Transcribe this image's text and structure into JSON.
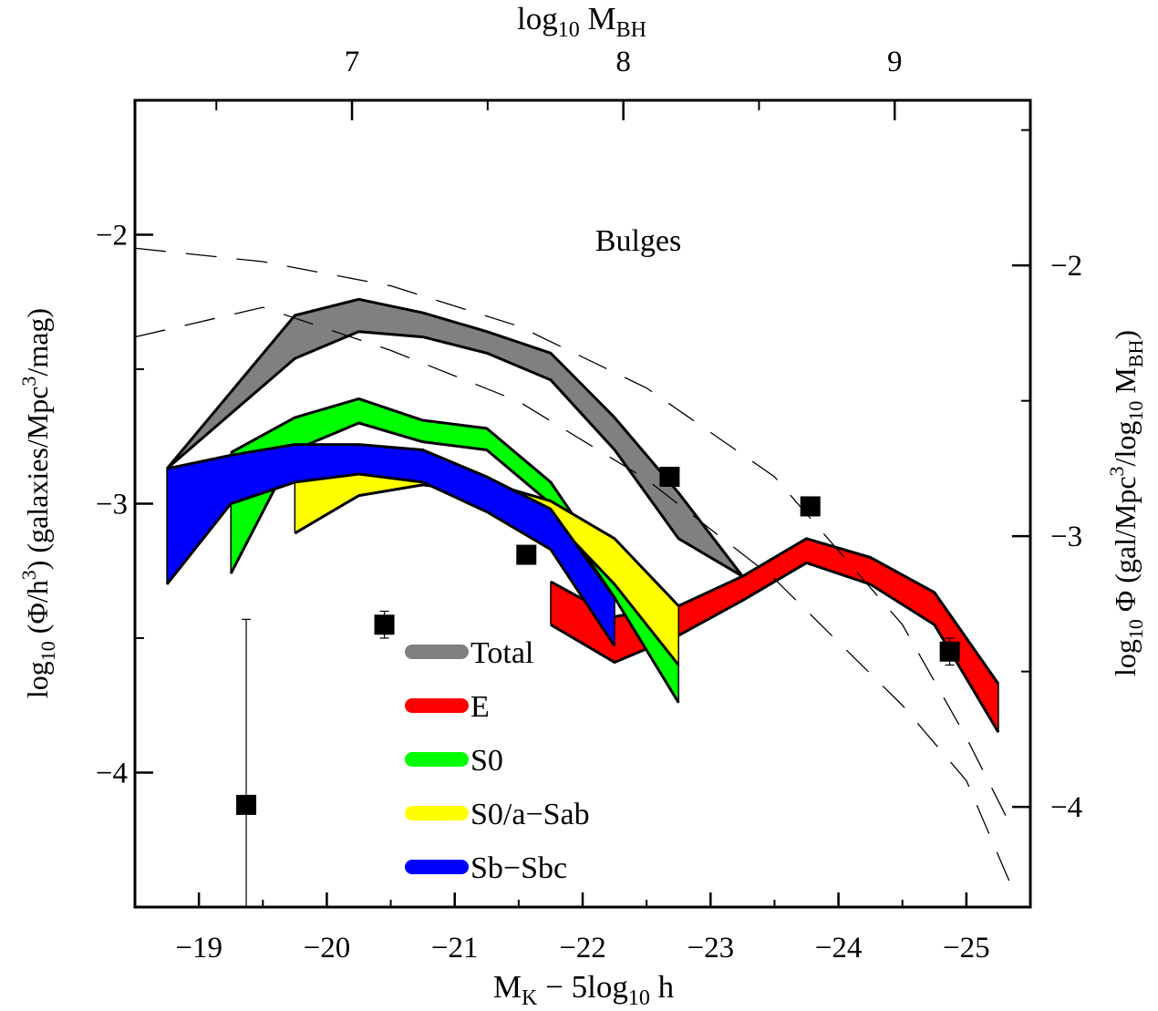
{
  "chart_data": {
    "type": "area",
    "annotation": "Bulges",
    "xlabel": {
      "main": "M",
      "sub1": "K",
      "mid": " − 5log",
      "sub2": "10",
      "end": " h"
    },
    "ylabel_left": {
      "a": "log",
      "a_sub": "10",
      "b": " (Φ/h",
      "b_sup": "3",
      "c": ") (galaxies/Mpc",
      "c_sup": "3",
      "d": "/mag)"
    },
    "ylabel_right": {
      "a": "log",
      "a_sub": "10",
      "b": " Φ (gal/Mpc",
      "b_sup": "3",
      "c": "/log",
      "c_sub": "10",
      "d": " M",
      "d_sub": "BH",
      "e": ")"
    },
    "xlabel_top": {
      "a": "log",
      "a_sub": "10",
      "b": " M",
      "b_sub": "BH"
    },
    "xlim": [
      -18.5,
      -25.5
    ],
    "ylim": [
      -4.5,
      -1.5
    ],
    "ylim_right": [
      -4.37,
      -1.39
    ],
    "top_xlim": [
      6.2,
      9.5
    ],
    "x_ticks": [
      {
        "value": -19,
        "label": "−19"
      },
      {
        "value": -20,
        "label": "−20"
      },
      {
        "value": -21,
        "label": "−21"
      },
      {
        "value": -22,
        "label": "−22"
      },
      {
        "value": -23,
        "label": "−23"
      },
      {
        "value": -24,
        "label": "−24"
      },
      {
        "value": -25,
        "label": "−25"
      }
    ],
    "y_ticks": [
      {
        "value": -2,
        "label": "−2"
      },
      {
        "value": -3,
        "label": "−3"
      },
      {
        "value": -4,
        "label": "−4"
      }
    ],
    "y_right_ticks": [
      {
        "value": -2,
        "label": "−2"
      },
      {
        "value": -3,
        "label": "−3"
      },
      {
        "value": -4,
        "label": "−4"
      }
    ],
    "x_top_ticks": [
      {
        "value": 7,
        "label": "7"
      },
      {
        "value": 8,
        "label": "8"
      },
      {
        "value": 9,
        "label": "9"
      }
    ],
    "bands": [
      {
        "name": "E",
        "color": "#ff0000",
        "x": [
          -21.75,
          -22.25,
          -22.75,
          -23.25,
          -23.75,
          -24.25,
          -24.75,
          -25.25
        ],
        "upper": [
          -3.29,
          -3.42,
          -3.38,
          -3.27,
          -3.13,
          -3.2,
          -3.33,
          -3.67
        ],
        "lower": [
          -3.45,
          -3.59,
          -3.49,
          -3.36,
          -3.22,
          -3.3,
          -3.45,
          -3.85
        ]
      },
      {
        "name": "Total",
        "color": "#808080",
        "x": [
          -18.75,
          -19.75,
          -20.25,
          -20.75,
          -21.25,
          -21.75,
          -22.25,
          -22.75,
          -23.25
        ],
        "upper": [
          -2.87,
          -2.3,
          -2.24,
          -2.29,
          -2.36,
          -2.44,
          -2.68,
          -2.96,
          -3.27
        ],
        "lower": [
          -2.87,
          -2.46,
          -2.36,
          -2.38,
          -2.44,
          -2.54,
          -2.8,
          -3.13,
          -3.27
        ]
      },
      {
        "name": "S0",
        "color": "#00ff00",
        "x": [
          -19.25,
          -19.75,
          -20.25,
          -20.75,
          -21.25,
          -21.75,
          -22.25,
          -22.75
        ],
        "upper": [
          -2.81,
          -2.68,
          -2.61,
          -2.69,
          -2.72,
          -2.92,
          -3.27,
          -3.6
        ],
        "lower": [
          -3.26,
          -2.8,
          -2.7,
          -2.77,
          -2.8,
          -3.0,
          -3.35,
          -3.74
        ]
      },
      {
        "name": "S0/a−Sab",
        "color": "#ffff00",
        "x": [
          -19.75,
          -20.25,
          -20.75,
          -21.25,
          -21.75,
          -22.25,
          -22.75
        ],
        "upper": [
          -2.88,
          -2.85,
          -2.87,
          -2.92,
          -2.99,
          -3.13,
          -3.38
        ],
        "lower": [
          -3.11,
          -2.97,
          -2.93,
          -2.96,
          -3.05,
          -3.3,
          -3.6
        ]
      },
      {
        "name": "Sb−Sbc",
        "color": "#0000ff",
        "x": [
          -18.75,
          -19.25,
          -19.75,
          -20.25,
          -20.75,
          -21.25,
          -21.75,
          -22.25
        ],
        "upper": [
          -2.87,
          -2.82,
          -2.78,
          -2.78,
          -2.8,
          -2.9,
          -3.02,
          -3.35
        ],
        "lower": [
          -3.3,
          -3.0,
          -2.92,
          -2.89,
          -2.92,
          -3.03,
          -3.17,
          -3.53
        ]
      }
    ],
    "dashed_lines": [
      {
        "x": [
          -18.5,
          -19.5,
          -20.5,
          -21.5,
          -22.5,
          -23.5,
          -24.5,
          -25.0,
          -25.35
        ],
        "y": [
          -2.05,
          -2.1,
          -2.19,
          -2.34,
          -2.57,
          -2.9,
          -3.45,
          -3.87,
          -4.2
        ]
      },
      {
        "x": [
          -18.5,
          -19.5,
          -20.5,
          -21.5,
          -22.5,
          -23.5,
          -24.5,
          -25.0,
          -25.35
        ],
        "y": [
          -2.38,
          -2.27,
          -2.43,
          -2.62,
          -2.91,
          -3.28,
          -3.75,
          -4.03,
          -4.42
        ]
      }
    ],
    "points": [
      {
        "x": -19.37,
        "y": -4.12,
        "err_lo": -4.5,
        "err_hi": -3.43
      },
      {
        "x": -20.45,
        "y": -3.45,
        "err_lo": -3.5,
        "err_hi": -3.4
      },
      {
        "x": -21.56,
        "y": -3.19,
        "err_lo": null,
        "err_hi": null
      },
      {
        "x": -22.68,
        "y": -2.9,
        "err_lo": null,
        "err_hi": null
      },
      {
        "x": -23.78,
        "y": -3.01,
        "err_lo": null,
        "err_hi": null
      },
      {
        "x": -24.87,
        "y": -3.55,
        "err_lo": -3.6,
        "err_hi": -3.5
      }
    ],
    "legend": {
      "position": "lower-center",
      "items": [
        {
          "label": "Total",
          "color": "#808080"
        },
        {
          "label": "E",
          "color": "#ff0000"
        },
        {
          "label": "S0",
          "color": "#00ff00"
        },
        {
          "label": "S0/a−Sab",
          "color": "#ffff00"
        },
        {
          "label": "Sb−Sbc",
          "color": "#0000ff"
        }
      ]
    }
  }
}
